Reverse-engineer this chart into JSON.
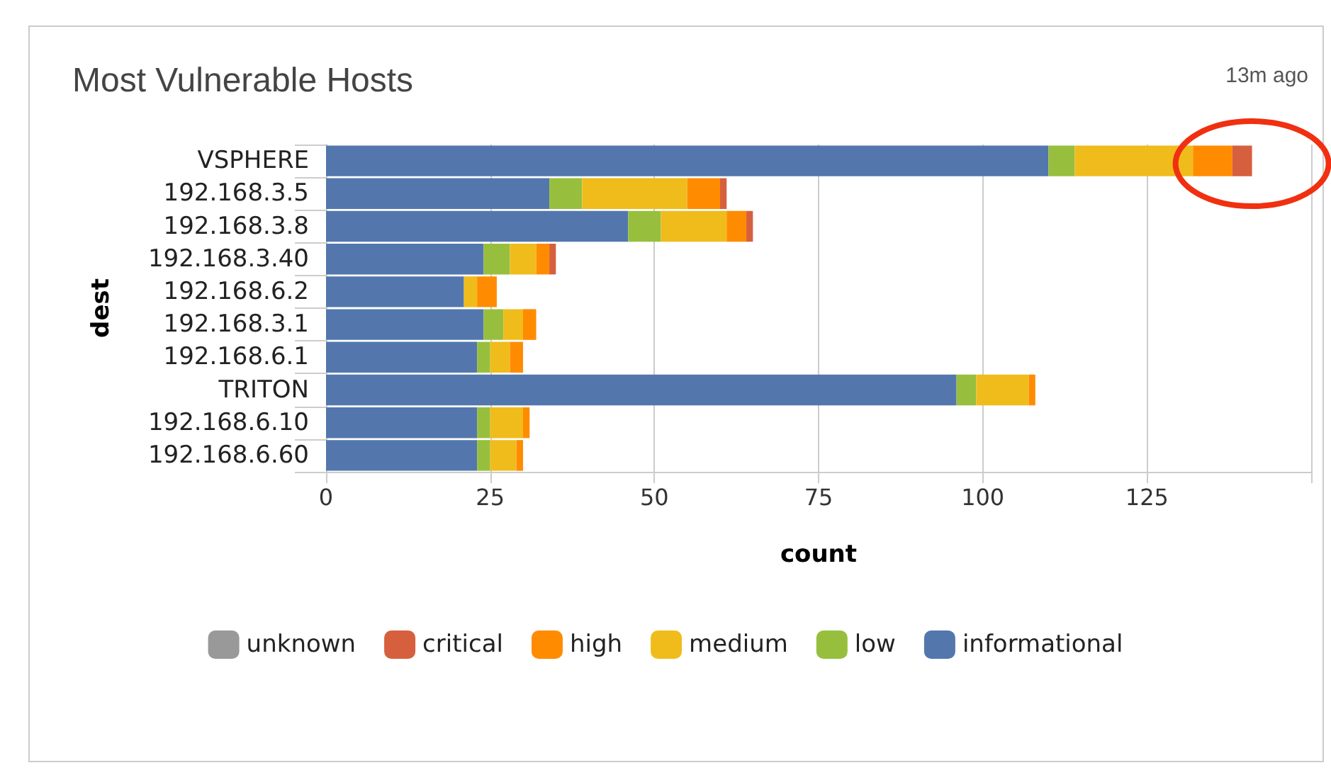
{
  "chart_data": {
    "type": "bar",
    "orientation": "horizontal",
    "stacked": true,
    "title": "Most Vulnerable Hosts",
    "xlabel": "count",
    "ylabel": "dest",
    "annotations": [
      "13m ago"
    ],
    "categories": [
      "VSPHERE",
      "192.168.3.5",
      "192.168.3.8",
      "192.168.3.40",
      "192.168.6.2",
      "192.168.3.1",
      "192.168.6.1",
      "TRITON",
      "192.168.6.10",
      "192.168.6.60"
    ],
    "series": [
      {
        "name": "informational",
        "color": "#5377ad",
        "values": [
          110,
          34,
          46,
          24,
          21,
          24,
          23,
          96,
          23,
          23
        ]
      },
      {
        "name": "low",
        "color": "#97bf3d",
        "values": [
          4,
          5,
          5,
          4,
          null,
          3,
          2,
          3,
          2,
          2
        ]
      },
      {
        "name": "medium",
        "color": "#f0bc1c",
        "values": [
          18,
          16,
          10,
          4,
          2,
          3,
          3,
          8,
          5,
          4
        ]
      },
      {
        "name": "high",
        "color": "#ff8c00",
        "values": [
          6,
          5,
          3,
          2,
          3,
          2,
          2,
          1,
          1,
          1
        ]
      },
      {
        "name": "critical",
        "color": "#d6603e",
        "values": [
          3,
          1,
          1,
          1,
          null,
          null,
          null,
          null,
          null,
          null
        ]
      },
      {
        "name": "unknown",
        "color": "#999999",
        "values": [
          null,
          null,
          null,
          null,
          null,
          null,
          null,
          null,
          null,
          null
        ]
      }
    ],
    "xlim": [
      0,
      150
    ],
    "xticks": [
      0,
      25,
      50,
      75,
      100,
      125,
      {
        "value": 150,
        "label": null
      }
    ],
    "grid": "x",
    "legend": "bottom"
  }
}
